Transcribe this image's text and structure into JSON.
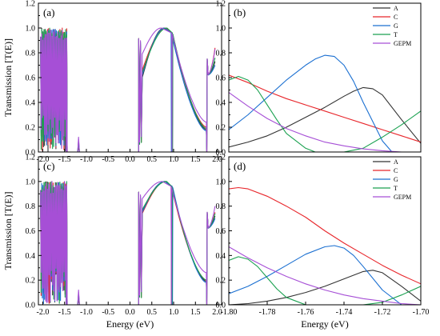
{
  "colors": {
    "A": "#333333",
    "C": "#e8262b",
    "G": "#1a6fd1",
    "T": "#1aa150",
    "GEPM": "#a64fd6"
  },
  "chart_data": [
    {
      "panel": "(a)",
      "type": "line",
      "ylabel": "Transmission [T(E)]",
      "xlabel": "",
      "xlim": [
        -2.1,
        2.1
      ],
      "ylim": [
        0,
        1.2
      ],
      "xticks": [
        "-2.0",
        "-1.5",
        "-1.0",
        "-0.5",
        "0.0",
        "0.5",
        "1.0",
        "1.5",
        "2.0"
      ],
      "yticks": [
        "0.0",
        "0.2",
        "0.4",
        "0.6",
        "0.8",
        "1.0",
        "1.2"
      ],
      "series": [
        {
          "key": "A",
          "band1": {
            "x": [
              -2.05,
              -1.45
            ],
            "min": 0.3
          },
          "band2": {
            "x": [
              0.2,
              1.95
            ],
            "dip_x": 0.28,
            "dip_y": 0.6,
            "peak_x": 0.78,
            "peak_y": 1.0,
            "right_min_y": 0.18,
            "end_y": 0.73
          }
        },
        {
          "key": "C",
          "band1": {
            "x": [
              -2.05,
              -1.45
            ],
            "min": 0.3
          },
          "band2": {
            "x": [
              0.2,
              1.95
            ],
            "dip_x": 0.28,
            "dip_y": 0.66,
            "peak_x": 0.82,
            "peak_y": 1.0,
            "right_min_y": 0.2,
            "end_y": 0.84
          }
        },
        {
          "key": "G",
          "band1": {
            "x": [
              -2.05,
              -1.45
            ],
            "min": 0.3
          },
          "band2": {
            "x": [
              0.2,
              1.95
            ],
            "dip_x": 0.28,
            "dip_y": 0.62,
            "peak_x": 0.8,
            "peak_y": 1.0,
            "right_min_y": 0.17,
            "end_y": 0.7
          }
        },
        {
          "key": "T",
          "band1": {
            "x": [
              -2.05,
              -1.45
            ],
            "min": 0.3
          },
          "band2": {
            "x": [
              0.2,
              1.95
            ],
            "dip_x": 0.28,
            "dip_y": 0.64,
            "peak_x": 0.85,
            "peak_y": 1.0,
            "right_min_y": 0.19,
            "end_y": 0.76
          }
        },
        {
          "key": "GEPM",
          "band1": {
            "x": [
              -2.05,
              -1.45
            ],
            "min": 0.3
          },
          "band2": {
            "x": [
              0.2,
              1.95
            ],
            "dip_x": 0.28,
            "dip_y": 0.79,
            "peak_x": 0.72,
            "peak_y": 1.0,
            "right_min_y": 0.24,
            "end_y": 0.83
          }
        }
      ]
    },
    {
      "panel": "(b)",
      "type": "line",
      "xlabel": "",
      "ylabel": "",
      "xlim": [
        -1.8,
        -1.7
      ],
      "ylim": [
        0,
        1.2
      ],
      "xticks": [],
      "yticks": [
        "0.0",
        "0.2",
        "0.4",
        "0.6",
        "0.8",
        "1.0",
        "1.2"
      ],
      "legend": [
        "A",
        "C",
        "G",
        "T",
        "GEPM"
      ],
      "series": [
        {
          "key": "A",
          "x": [
            -1.8,
            -1.79,
            -1.78,
            -1.77,
            -1.76,
            -1.75,
            -1.74,
            -1.735,
            -1.73,
            -1.725,
            -1.72,
            -1.71,
            -1.7
          ],
          "y": [
            0.04,
            0.08,
            0.13,
            0.2,
            0.28,
            0.36,
            0.45,
            0.49,
            0.52,
            0.51,
            0.46,
            0.26,
            0.07
          ]
        },
        {
          "key": "C",
          "x": [
            -1.8,
            -1.79,
            -1.78,
            -1.77,
            -1.76,
            -1.75,
            -1.74,
            -1.73,
            -1.72,
            -1.71,
            -1.7
          ],
          "y": [
            0.62,
            0.56,
            0.49,
            0.43,
            0.38,
            0.33,
            0.28,
            0.23,
            0.18,
            0.13,
            0.08
          ]
        },
        {
          "key": "G",
          "x": [
            -1.8,
            -1.79,
            -1.78,
            -1.77,
            -1.76,
            -1.755,
            -1.75,
            -1.745,
            -1.74,
            -1.735,
            -1.73,
            -1.72,
            -1.715
          ],
          "y": [
            0.18,
            0.3,
            0.44,
            0.58,
            0.7,
            0.75,
            0.78,
            0.77,
            0.7,
            0.57,
            0.4,
            0.09,
            0.0
          ]
        },
        {
          "key": "T",
          "x": [
            -1.8,
            -1.795,
            -1.79,
            -1.785,
            -1.78,
            -1.775,
            -1.77,
            -1.76,
            -1.755,
            -1.75,
            -1.74,
            -1.73,
            -1.72,
            -1.71,
            -1.7
          ],
          "y": [
            0.58,
            0.61,
            0.58,
            0.5,
            0.38,
            0.26,
            0.15,
            0.03,
            0.0,
            0.0,
            0.0,
            0.03,
            0.12,
            0.22,
            0.33
          ]
        },
        {
          "key": "GEPM",
          "x": [
            -1.8,
            -1.79,
            -1.78,
            -1.77,
            -1.76,
            -1.75,
            -1.74,
            -1.73,
            -1.72,
            -1.71,
            -1.7
          ],
          "y": [
            0.48,
            0.37,
            0.27,
            0.19,
            0.13,
            0.08,
            0.05,
            0.025,
            0.01,
            0.0,
            0.0
          ]
        }
      ]
    },
    {
      "panel": "(c)",
      "type": "line",
      "ylabel": "Transmission [T(E)]",
      "xlabel": "Energy (eV)",
      "xlim": [
        -2.1,
        2.1
      ],
      "ylim": [
        0,
        1.2
      ],
      "xticks": [
        "-2.0",
        "-1.5",
        "-1.0",
        "-0.5",
        "0.0",
        "0.5",
        "1.0",
        "1.5",
        "2.0"
      ],
      "yticks": [
        "0.0",
        "0.2",
        "0.4",
        "0.6",
        "0.8",
        "1.0",
        "1.2"
      ],
      "series": [
        {
          "key": "A",
          "band1": {
            "x": [
              -2.05,
              -1.45
            ],
            "min": 0.3
          },
          "band2": {
            "x": [
              0.2,
              1.95
            ],
            "dip_x": 0.28,
            "dip_y": 0.76,
            "peak_x": 0.8,
            "peak_y": 1.0,
            "right_min_y": 0.19,
            "end_y": 0.72
          }
        },
        {
          "key": "C",
          "band1": {
            "x": [
              -2.05,
              -1.45
            ],
            "min": 0.3
          },
          "band2": {
            "x": [
              0.2,
              1.95
            ],
            "dip_x": 0.28,
            "dip_y": 0.74,
            "peak_x": 0.82,
            "peak_y": 1.0,
            "right_min_y": 0.2,
            "end_y": 0.75
          }
        },
        {
          "key": "G",
          "band1": {
            "x": [
              -2.05,
              -1.45
            ],
            "min": 0.3
          },
          "band2": {
            "x": [
              0.2,
              1.95
            ],
            "dip_x": 0.28,
            "dip_y": 0.75,
            "peak_x": 0.8,
            "peak_y": 1.0,
            "right_min_y": 0.18,
            "end_y": 0.7
          }
        },
        {
          "key": "T",
          "band1": {
            "x": [
              -2.05,
              -1.45
            ],
            "min": 0.3
          },
          "band2": {
            "x": [
              0.2,
              1.95
            ],
            "dip_x": 0.28,
            "dip_y": 0.77,
            "peak_x": 0.84,
            "peak_y": 1.0,
            "right_min_y": 0.2,
            "end_y": 0.74
          }
        },
        {
          "key": "GEPM",
          "band1": {
            "x": [
              -2.05,
              -1.45
            ],
            "min": 0.3
          },
          "band2": {
            "x": [
              0.2,
              1.95
            ],
            "dip_x": 0.28,
            "dip_y": 0.86,
            "peak_x": 0.74,
            "peak_y": 1.0,
            "right_min_y": 0.26,
            "end_y": 0.8
          }
        }
      ]
    },
    {
      "panel": "(d)",
      "type": "line",
      "xlabel": "Energy (eV)",
      "ylabel": "",
      "xlim": [
        -1.8,
        -1.7
      ],
      "ylim": [
        0,
        1.2
      ],
      "xticks": [
        "-1.80",
        "-1.78",
        "-1.76",
        "-1.74",
        "-1.72",
        "-1.70"
      ],
      "yticks": [
        "0.0",
        "0.2",
        "0.4",
        "0.6",
        "0.8",
        "1.0",
        "1.2"
      ],
      "legend": [
        "A",
        "C",
        "G",
        "T",
        "GEPM"
      ],
      "series": [
        {
          "key": "A",
          "x": [
            -1.8,
            -1.79,
            -1.78,
            -1.77,
            -1.76,
            -1.75,
            -1.74,
            -1.73,
            -1.725,
            -1.72,
            -1.71,
            -1.7
          ],
          "y": [
            0.0,
            0.01,
            0.03,
            0.06,
            0.1,
            0.15,
            0.21,
            0.27,
            0.28,
            0.26,
            0.15,
            0.03
          ]
        },
        {
          "key": "C",
          "x": [
            -1.8,
            -1.795,
            -1.79,
            -1.78,
            -1.77,
            -1.76,
            -1.75,
            -1.74,
            -1.73,
            -1.72,
            -1.71,
            -1.7
          ],
          "y": [
            0.94,
            0.95,
            0.94,
            0.88,
            0.8,
            0.71,
            0.6,
            0.5,
            0.41,
            0.32,
            0.24,
            0.17
          ]
        },
        {
          "key": "G",
          "x": [
            -1.8,
            -1.79,
            -1.78,
            -1.77,
            -1.76,
            -1.75,
            -1.745,
            -1.74,
            -1.735,
            -1.73,
            -1.72,
            -1.71
          ],
          "y": [
            0.09,
            0.15,
            0.23,
            0.32,
            0.41,
            0.47,
            0.48,
            0.46,
            0.4,
            0.31,
            0.12,
            0.0
          ]
        },
        {
          "key": "T",
          "x": [
            -1.8,
            -1.795,
            -1.79,
            -1.785,
            -1.78,
            -1.775,
            -1.77,
            -1.76,
            -1.75,
            -1.74,
            -1.73,
            -1.72,
            -1.71,
            -1.7
          ],
          "y": [
            0.36,
            0.39,
            0.37,
            0.31,
            0.22,
            0.13,
            0.06,
            0.0,
            0.0,
            0.0,
            0.0,
            0.02,
            0.08,
            0.15
          ]
        },
        {
          "key": "GEPM",
          "x": [
            -1.8,
            -1.79,
            -1.78,
            -1.77,
            -1.76,
            -1.75,
            -1.74,
            -1.73,
            -1.72,
            -1.71,
            -1.7
          ],
          "y": [
            0.47,
            0.38,
            0.3,
            0.23,
            0.17,
            0.12,
            0.08,
            0.05,
            0.03,
            0.01,
            0.0
          ]
        }
      ]
    }
  ]
}
